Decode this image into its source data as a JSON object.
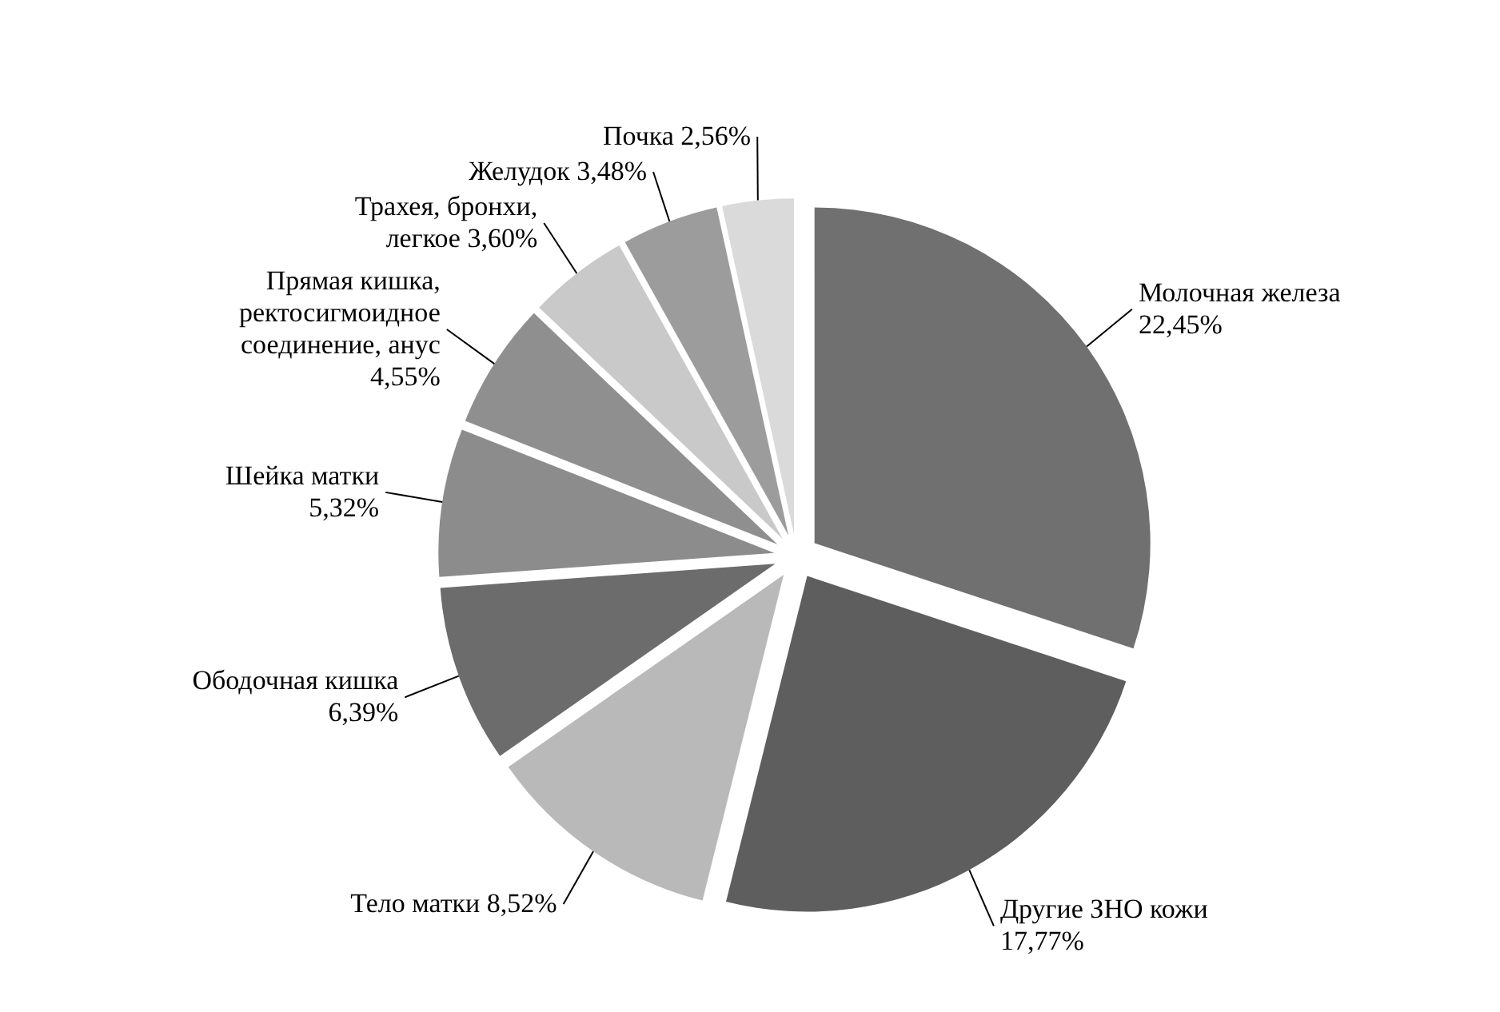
{
  "chart_data": {
    "type": "pie",
    "categories": [
      "Молочная железа",
      "Другие ЗНО кожи",
      "Тело матки",
      "Ободочная кишка",
      "Шейка матки",
      "Прямая кишка, ректосигмоидное соединение, анус",
      "Трахея, бронхи, легкое",
      "Желудок",
      "Почка"
    ],
    "values": [
      22.45,
      17.77,
      8.52,
      6.39,
      5.32,
      4.55,
      3.6,
      3.48,
      2.56
    ],
    "value_labels": [
      "22,45%",
      "17,77%",
      "8,52%",
      "6,39%",
      "5,32%",
      "4,55%",
      "3,60%",
      "3,48%",
      "2,56%"
    ],
    "colors": [
      "#707070",
      "#5e5e5e",
      "#b9b9b9",
      "#6c6c6c",
      "#8c8c8c",
      "#8f8f8f",
      "#c9c9c9",
      "#9c9c9c",
      "#dadada"
    ]
  }
}
